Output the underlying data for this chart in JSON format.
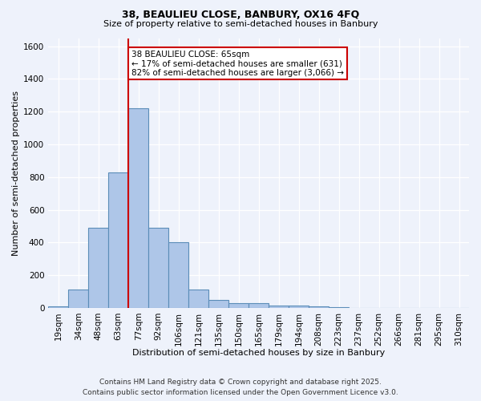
{
  "title1": "38, BEAULIEU CLOSE, BANBURY, OX16 4FQ",
  "title2": "Size of property relative to semi-detached houses in Banbury",
  "xlabel": "Distribution of semi-detached houses by size in Banbury",
  "ylabel": "Number of semi-detached properties",
  "bin_labels": [
    "19sqm",
    "34sqm",
    "48sqm",
    "63sqm",
    "77sqm",
    "92sqm",
    "106sqm",
    "121sqm",
    "135sqm",
    "150sqm",
    "165sqm",
    "179sqm",
    "194sqm",
    "208sqm",
    "223sqm",
    "237sqm",
    "252sqm",
    "266sqm",
    "281sqm",
    "295sqm",
    "310sqm"
  ],
  "bar_values": [
    10,
    110,
    490,
    830,
    1220,
    490,
    400,
    110,
    50,
    30,
    30,
    15,
    15,
    10,
    5,
    0,
    0,
    0,
    0,
    0,
    0
  ],
  "bar_color": "#aec6e8",
  "bar_edge_color": "#5b8db8",
  "vline_x": 3.5,
  "vline_color": "#cc0000",
  "annotation_title": "38 BEAULIEU CLOSE: 65sqm",
  "annotation_line1": "← 17% of semi-detached houses are smaller (631)",
  "annotation_line2": "82% of semi-detached houses are larger (3,066) →",
  "annotation_box_color": "white",
  "annotation_box_edge_color": "#cc0000",
  "footer1": "Contains HM Land Registry data © Crown copyright and database right 2025.",
  "footer2": "Contains public sector information licensed under the Open Government Licence v3.0.",
  "bg_color": "#eef2fb",
  "ylim": [
    0,
    1650
  ],
  "yticks": [
    0,
    200,
    400,
    600,
    800,
    1000,
    1200,
    1400,
    1600
  ],
  "title1_fontsize": 9,
  "title2_fontsize": 8,
  "xlabel_fontsize": 8,
  "ylabel_fontsize": 8,
  "tick_fontsize": 7.5,
  "footer_fontsize": 6.5,
  "annot_fontsize": 7.5
}
